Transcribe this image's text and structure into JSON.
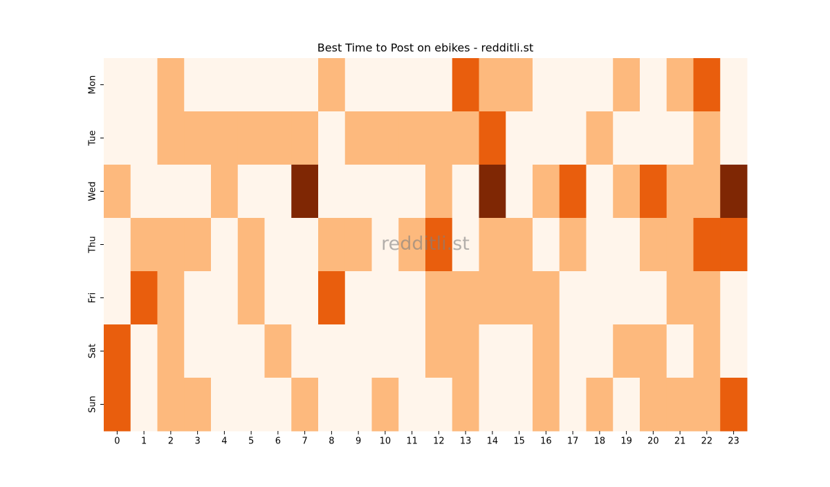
{
  "chart_data": {
    "type": "heatmap",
    "title": "Best Time to Post on ebikes - redditli.st",
    "watermark": "redditli.st",
    "x": [
      "0",
      "1",
      "2",
      "3",
      "4",
      "5",
      "6",
      "7",
      "8",
      "9",
      "10",
      "11",
      "12",
      "13",
      "14",
      "15",
      "16",
      "17",
      "18",
      "19",
      "20",
      "21",
      "22",
      "23"
    ],
    "y": [
      "Mon",
      "Tue",
      "Wed",
      "Thu",
      "Fri",
      "Sat",
      "Sun"
    ],
    "values": [
      [
        0,
        0,
        1,
        0,
        0,
        0,
        0,
        0,
        1,
        0,
        0,
        0,
        0,
        2,
        1,
        1,
        0,
        0,
        0,
        1,
        0,
        1,
        2,
        0
      ],
      [
        0,
        0,
        1,
        1,
        1,
        1,
        1,
        1,
        0,
        1,
        1,
        1,
        1,
        1,
        2,
        0,
        0,
        0,
        1,
        0,
        0,
        0,
        1,
        0
      ],
      [
        1,
        0,
        0,
        0,
        1,
        0,
        0,
        3,
        0,
        0,
        0,
        0,
        1,
        0,
        3,
        0,
        1,
        2,
        0,
        1,
        2,
        1,
        1,
        3
      ],
      [
        0,
        1,
        1,
        1,
        0,
        1,
        0,
        0,
        1,
        1,
        0,
        1,
        2,
        0,
        1,
        1,
        0,
        1,
        0,
        0,
        1,
        1,
        2,
        2
      ],
      [
        0,
        2,
        1,
        0,
        0,
        1,
        0,
        0,
        2,
        0,
        0,
        0,
        1,
        1,
        1,
        1,
        1,
        0,
        0,
        0,
        0,
        1,
        1,
        0
      ],
      [
        2,
        0,
        1,
        0,
        0,
        0,
        1,
        0,
        0,
        0,
        0,
        0,
        1,
        1,
        0,
        0,
        1,
        0,
        0,
        1,
        1,
        0,
        1,
        0
      ],
      [
        2,
        0,
        1,
        1,
        0,
        0,
        0,
        1,
        0,
        0,
        1,
        0,
        0,
        1,
        0,
        0,
        1,
        0,
        1,
        0,
        1,
        1,
        1,
        2
      ]
    ],
    "zlim": [
      0,
      3
    ],
    "colors": [
      "#fff5eb",
      "#fdb97d",
      "#e95e0d",
      "#7f2704"
    ]
  }
}
